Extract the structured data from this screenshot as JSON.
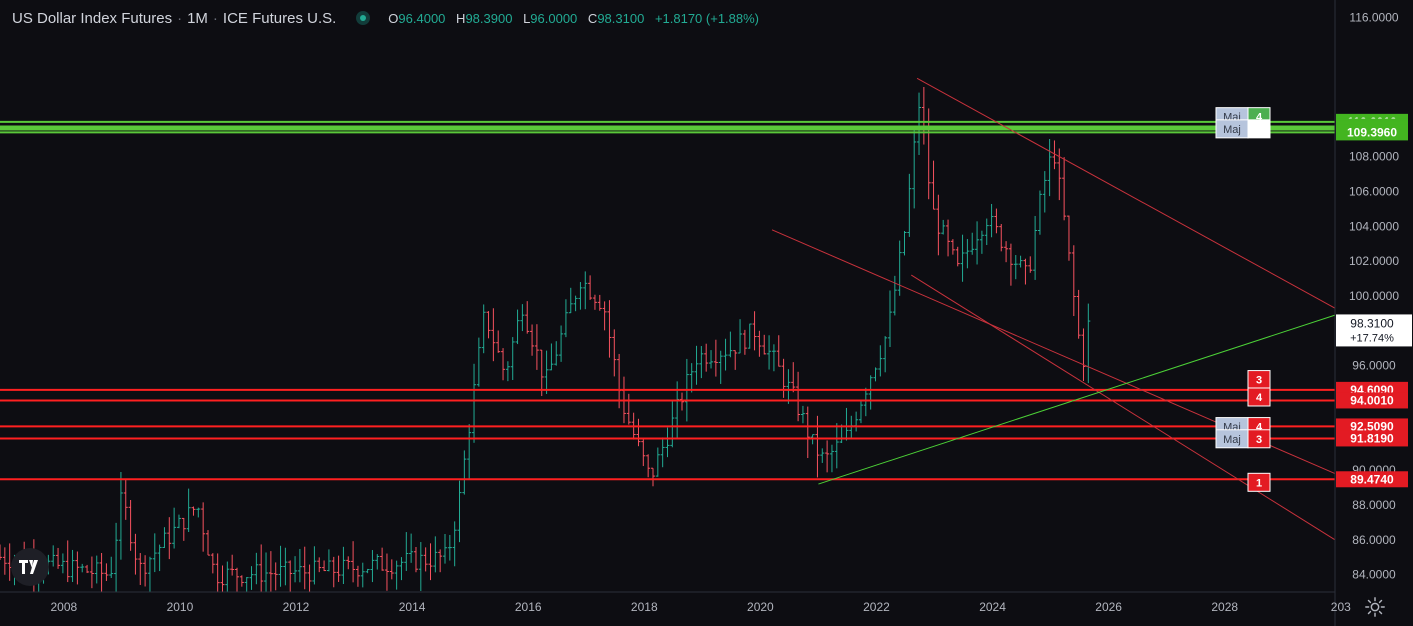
{
  "header": {
    "symbol": "US Dollar Index Futures",
    "interval": "1M",
    "exchange": "ICE Futures U.S.",
    "o_label": "O",
    "open": "96.4000",
    "h_label": "H",
    "high": "98.3900",
    "l_label": "L",
    "low": "96.0000",
    "c_label": "C",
    "close": "98.3100",
    "change": "+1.8170 (+1.88%)"
  },
  "colors": {
    "background": "#0d0d12",
    "up": "#22ab94",
    "down": "#f7525f",
    "support_line": "#ff2020",
    "resistance_band": "#5ac83a",
    "trendline_red": "#c8323c",
    "trendline_green": "#4cd137",
    "axis_text": "#b2b5be",
    "current_price_label_bg": "#ffffff"
  },
  "icons": {
    "logo": "tradingview-logo-icon",
    "settings": "gear-icon"
  },
  "chart_data": {
    "type": "ohlc",
    "title": "US Dollar Index Futures · 1M · ICE Futures U.S.",
    "x_unit": "year",
    "xlim": [
      2006.9,
      2029.9
    ],
    "ylim": [
      83.0,
      117.0
    ],
    "x_tick_labels": [
      "2008",
      "2010",
      "2012",
      "2014",
      "2016",
      "2018",
      "2020",
      "2022",
      "2024",
      "2026",
      "2028",
      "203"
    ],
    "y_tick_labels": [
      "84.0000",
      "86.0000",
      "88.0000",
      "90.0000",
      "96.0000",
      "98.0000",
      "100.0000",
      "102.0000",
      "104.0000",
      "106.0000",
      "108.0000",
      "116.0000"
    ],
    "grid": false,
    "current_price": {
      "value": 98.31,
      "label": "98.3100",
      "change_label": "+17.74%"
    },
    "price_path": [
      [
        2006.9,
        85.0
      ],
      [
        2008.8,
        84.0
      ],
      [
        2009.0,
        88.5
      ],
      [
        2009.3,
        84.3
      ],
      [
        2010.3,
        88.0
      ],
      [
        2010.6,
        84.0
      ],
      [
        2012.5,
        84.2
      ],
      [
        2013.5,
        84.6
      ],
      [
        2014.6,
        85.0
      ],
      [
        2014.8,
        88.0
      ],
      [
        2015.0,
        93.0
      ],
      [
        2015.25,
        99.0
      ],
      [
        2015.6,
        95.5
      ],
      [
        2015.9,
        99.5
      ],
      [
        2016.3,
        95.0
      ],
      [
        2016.9,
        101.0
      ],
      [
        2017.3,
        99.5
      ],
      [
        2017.6,
        94.0
      ],
      [
        2018.1,
        89.5
      ],
      [
        2018.4,
        92.0
      ],
      [
        2018.9,
        96.5
      ],
      [
        2019.5,
        97.0
      ],
      [
        2019.9,
        98.0
      ],
      [
        2020.2,
        96.5
      ],
      [
        2020.6,
        94.0
      ],
      [
        2020.9,
        91.5
      ],
      [
        2021.1,
        90.5
      ],
      [
        2021.5,
        92.0
      ],
      [
        2021.9,
        95.5
      ],
      [
        2022.2,
        98.0
      ],
      [
        2022.5,
        104.0
      ],
      [
        2022.75,
        111.5
      ],
      [
        2022.95,
        105.0
      ],
      [
        2023.4,
        101.5
      ],
      [
        2023.7,
        103.5
      ],
      [
        2023.9,
        104.5
      ],
      [
        2024.2,
        103.0
      ],
      [
        2024.6,
        101.0
      ],
      [
        2024.85,
        106.0
      ],
      [
        2025.05,
        108.5
      ],
      [
        2025.25,
        104.0
      ],
      [
        2025.45,
        98.5
      ],
      [
        2025.55,
        96.0
      ],
      [
        2025.65,
        98.31
      ]
    ],
    "horizontal_levels": [
      {
        "price": 110.001,
        "label": "110.0010",
        "kind": "resistance"
      },
      {
        "price": 109.734,
        "label": "109.7340",
        "kind": "resistance"
      },
      {
        "price": 109.626,
        "label": "109.6260",
        "kind": "resistance"
      },
      {
        "price": 109.561,
        "label": "109.5610",
        "kind": "resistance"
      },
      {
        "price": 109.396,
        "label": "109.3960",
        "kind": "resistance"
      },
      {
        "price": 94.609,
        "label": "94.6090",
        "kind": "support"
      },
      {
        "price": 94.001,
        "label": "94.0010",
        "kind": "support"
      },
      {
        "price": 92.509,
        "label": "92.5090",
        "kind": "support"
      },
      {
        "price": 91.819,
        "label": "91.8190",
        "kind": "support"
      },
      {
        "price": 89.474,
        "label": "89.4740",
        "kind": "support"
      }
    ],
    "level_tags": [
      {
        "price": 110.3,
        "text": "Maj",
        "num": "4",
        "num_color": "#4caf50"
      },
      {
        "price": 109.6,
        "text": "Maj",
        "num": "",
        "num_color": "#ffffff"
      },
      {
        "price": 95.2,
        "text": "",
        "num": "3",
        "num_color": "#e31b23"
      },
      {
        "price": 94.2,
        "text": "",
        "num": "4",
        "num_color": "#e31b23"
      },
      {
        "price": 92.5,
        "text": "Maj",
        "num": "4",
        "num_color": "#e31b23"
      },
      {
        "price": 91.8,
        "text": "Maj",
        "num": "3",
        "num_color": "#e31b23"
      },
      {
        "price": 89.3,
        "text": "",
        "num": "1",
        "num_color": "#e31b23"
      }
    ],
    "trendlines": [
      {
        "from": [
          2022.7,
          112.5
        ],
        "to": [
          2029.9,
          99.3
        ],
        "color": "red"
      },
      {
        "from": [
          2020.2,
          103.8
        ],
        "to": [
          2029.9,
          89.8
        ],
        "color": "red"
      },
      {
        "from": [
          2022.6,
          101.2
        ],
        "to": [
          2029.9,
          86.0
        ],
        "color": "red"
      },
      {
        "from": [
          2021.0,
          89.2
        ],
        "to": [
          2029.9,
          98.9
        ],
        "color": "green"
      }
    ]
  }
}
